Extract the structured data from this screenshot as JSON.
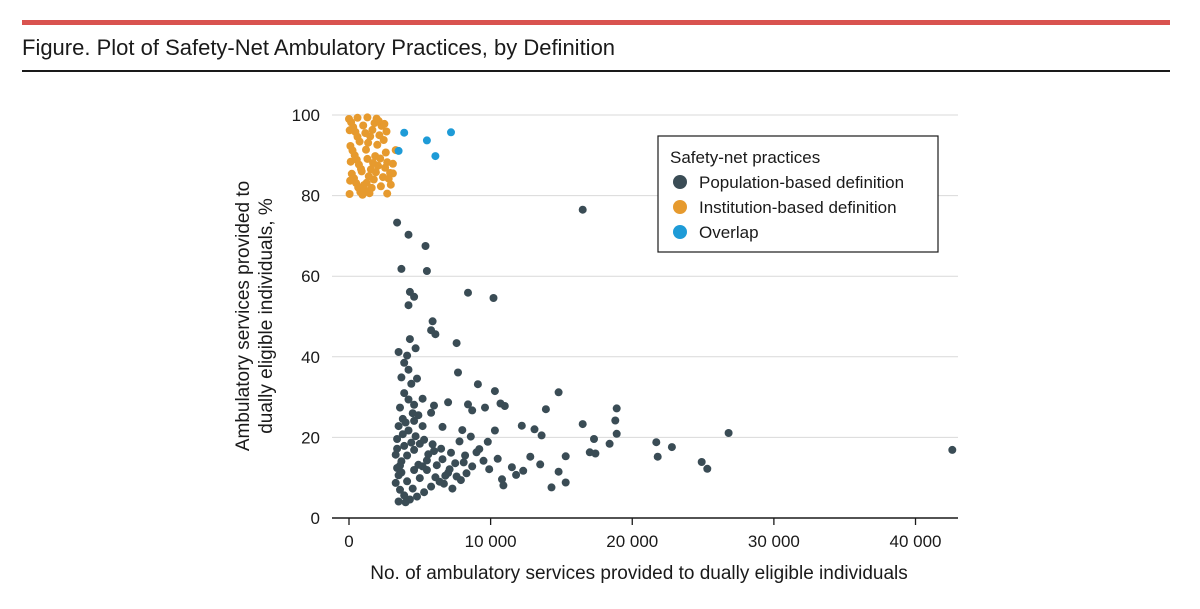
{
  "figure": {
    "title": "Figure. Plot of Safety-Net Ambulatory Practices, by Definition"
  },
  "colors": {
    "accent_rule": "#d9534f",
    "population": "#3a4c55",
    "institution": "#e69a2e",
    "overlap": "#1e9bd7",
    "gridline": "#d9d9d9"
  },
  "chart_data": {
    "type": "scatter",
    "xlabel": "No. of ambulatory services provided to dually eligible individuals",
    "ylabel_line1": "Ambulatory services provided to",
    "ylabel_line2": "dually eligible individuals, %",
    "xlim": [
      -1200,
      43000
    ],
    "ylim": [
      0,
      100
    ],
    "x_ticks": [
      0,
      10000,
      20000,
      30000,
      40000
    ],
    "x_tick_labels": [
      "0",
      "10 000",
      "20 000",
      "30 000",
      "40 000"
    ],
    "y_ticks": [
      0,
      20,
      40,
      60,
      80,
      100
    ],
    "y_tick_labels": [
      "0",
      "20",
      "40",
      "60",
      "80",
      "100"
    ],
    "grid": "horizontal",
    "legend": {
      "title": "Safety-net practices",
      "position": "top-right"
    },
    "series": [
      {
        "name": "Population-based definition",
        "color": "#3a4c55",
        "points": [
          [
            16500,
            76.5
          ],
          [
            3400,
            73.3
          ],
          [
            4200,
            70.3
          ],
          [
            5400,
            67.5
          ],
          [
            3700,
            61.8
          ],
          [
            5500,
            61.3
          ],
          [
            4300,
            56.1
          ],
          [
            4600,
            54.9
          ],
          [
            4200,
            52.8
          ],
          [
            8400,
            55.9
          ],
          [
            10200,
            54.6
          ],
          [
            5900,
            48.8
          ],
          [
            6100,
            45.6
          ],
          [
            5800,
            46.6
          ],
          [
            4300,
            44.4
          ],
          [
            4700,
            42.1
          ],
          [
            7600,
            43.4
          ],
          [
            3500,
            41.2
          ],
          [
            4100,
            40.3
          ],
          [
            3900,
            38.5
          ],
          [
            7700,
            36.1
          ],
          [
            4200,
            36.8
          ],
          [
            4800,
            34.6
          ],
          [
            3700,
            34.9
          ],
          [
            4400,
            33.3
          ],
          [
            9100,
            33.2
          ],
          [
            10300,
            31.5
          ],
          [
            14800,
            31.2
          ],
          [
            3900,
            31.0
          ],
          [
            4200,
            29.4
          ],
          [
            4600,
            28.1
          ],
          [
            5200,
            29.6
          ],
          [
            6000,
            27.9
          ],
          [
            7000,
            28.7
          ],
          [
            8400,
            28.2
          ],
          [
            9600,
            27.4
          ],
          [
            11000,
            27.8
          ],
          [
            13900,
            27.0
          ],
          [
            10700,
            28.4
          ],
          [
            8700,
            26.7
          ],
          [
            3600,
            27.4
          ],
          [
            4900,
            25.5
          ],
          [
            5800,
            26.1
          ],
          [
            3800,
            24.6
          ],
          [
            4600,
            24.1
          ],
          [
            5200,
            22.8
          ],
          [
            6600,
            22.6
          ],
          [
            8000,
            21.8
          ],
          [
            16500,
            23.3
          ],
          [
            18900,
            27.2
          ],
          [
            18800,
            24.2
          ],
          [
            12200,
            22.9
          ],
          [
            10300,
            21.7
          ],
          [
            13100,
            22.0
          ],
          [
            13600,
            20.5
          ],
          [
            17300,
            19.6
          ],
          [
            18900,
            20.9
          ],
          [
            21700,
            18.8
          ],
          [
            22800,
            17.6
          ],
          [
            26800,
            21.1
          ],
          [
            17000,
            16.3
          ],
          [
            18400,
            18.4
          ],
          [
            17400,
            16.0
          ],
          [
            21800,
            15.2
          ],
          [
            15300,
            15.3
          ],
          [
            14800,
            11.5
          ],
          [
            15300,
            8.8
          ],
          [
            14300,
            7.6
          ],
          [
            11800,
            10.7
          ],
          [
            10500,
            14.7
          ],
          [
            9500,
            14.2
          ],
          [
            11500,
            12.6
          ],
          [
            12300,
            11.7
          ],
          [
            10800,
            9.6
          ],
          [
            10900,
            8.1
          ],
          [
            24900,
            13.9
          ],
          [
            25300,
            12.2
          ],
          [
            42600,
            16.9
          ],
          [
            12800,
            15.2
          ],
          [
            13500,
            13.3
          ],
          [
            9200,
            17.1
          ],
          [
            8700,
            12.8
          ],
          [
            8300,
            11.1
          ],
          [
            7900,
            9.4
          ],
          [
            7300,
            7.3
          ],
          [
            6800,
            10.5
          ],
          [
            6200,
            13.1
          ],
          [
            5600,
            15.8
          ],
          [
            5000,
            18.4
          ],
          [
            4600,
            16.9
          ],
          [
            4100,
            15.5
          ],
          [
            3700,
            14.1
          ],
          [
            3400,
            12.4
          ],
          [
            3500,
            10.6
          ],
          [
            3300,
            8.7
          ],
          [
            3600,
            7.0
          ],
          [
            3900,
            5.6
          ],
          [
            4300,
            4.6
          ],
          [
            4800,
            5.3
          ],
          [
            5300,
            6.4
          ],
          [
            5800,
            7.8
          ],
          [
            6400,
            9.0
          ],
          [
            7000,
            11.2
          ],
          [
            7500,
            13.6
          ],
          [
            8200,
            15.5
          ],
          [
            9000,
            16.3
          ],
          [
            9800,
            18.9
          ],
          [
            9900,
            12.1
          ],
          [
            3400,
            19.6
          ],
          [
            3800,
            20.8
          ],
          [
            4200,
            21.7
          ],
          [
            4700,
            20.3
          ],
          [
            5300,
            19.4
          ],
          [
            5900,
            18.3
          ],
          [
            6500,
            17.2
          ],
          [
            7200,
            16.2
          ],
          [
            7800,
            19.0
          ],
          [
            8600,
            20.2
          ],
          [
            3500,
            22.8
          ],
          [
            4000,
            23.7
          ],
          [
            4500,
            26.0
          ],
          [
            3400,
            17.2
          ],
          [
            3900,
            17.9
          ],
          [
            4400,
            18.7
          ],
          [
            4900,
            13.2
          ],
          [
            5500,
            11.9
          ],
          [
            6100,
            10.1
          ],
          [
            6700,
            8.5
          ],
          [
            3300,
            15.7
          ],
          [
            3700,
            11.3
          ],
          [
            4100,
            9.1
          ],
          [
            4500,
            7.3
          ],
          [
            5000,
            9.9
          ],
          [
            5500,
            14.3
          ],
          [
            6000,
            16.6
          ],
          [
            6600,
            14.6
          ],
          [
            7100,
            12.1
          ],
          [
            7600,
            10.3
          ],
          [
            8100,
            13.8
          ],
          [
            3500,
            4.1
          ],
          [
            4000,
            3.9
          ],
          [
            4600,
            11.9
          ],
          [
            5200,
            12.8
          ],
          [
            3600,
            13.0
          ]
        ]
      },
      {
        "name": "Institution-based definition",
        "color": "#e69a2e",
        "points": [
          [
            0,
            99.0
          ],
          [
            150,
            98.2
          ],
          [
            300,
            97.0
          ],
          [
            450,
            95.8
          ],
          [
            600,
            94.6
          ],
          [
            750,
            93.4
          ],
          [
            100,
            92.3
          ],
          [
            250,
            91.2
          ],
          [
            400,
            90.0
          ],
          [
            550,
            88.9
          ],
          [
            700,
            87.7
          ],
          [
            850,
            86.6
          ],
          [
            200,
            85.4
          ],
          [
            350,
            84.3
          ],
          [
            500,
            83.1
          ],
          [
            650,
            82.0
          ],
          [
            800,
            80.9
          ],
          [
            950,
            80.2
          ],
          [
            1100,
            81.5
          ],
          [
            1250,
            83.2
          ],
          [
            1400,
            84.8
          ],
          [
            1550,
            86.5
          ],
          [
            1700,
            88.1
          ],
          [
            1850,
            89.8
          ],
          [
            1200,
            91.4
          ],
          [
            1350,
            93.1
          ],
          [
            1500,
            94.7
          ],
          [
            1650,
            96.3
          ],
          [
            1800,
            98.0
          ],
          [
            1950,
            99.1
          ],
          [
            1000,
            97.4
          ],
          [
            1150,
            95.5
          ],
          [
            1300,
            89.1
          ],
          [
            900,
            86.0
          ],
          [
            1050,
            82.6
          ],
          [
            1450,
            80.6
          ],
          [
            1600,
            81.9
          ],
          [
            1750,
            84.0
          ],
          [
            1900,
            85.8
          ],
          [
            2050,
            87.4
          ],
          [
            2200,
            89.2
          ],
          [
            2000,
            92.6
          ],
          [
            2150,
            95.0
          ],
          [
            2300,
            97.3
          ],
          [
            2100,
            98.5
          ],
          [
            2250,
            82.3
          ],
          [
            2400,
            84.6
          ],
          [
            2550,
            86.9
          ],
          [
            2700,
            88.3
          ],
          [
            2600,
            90.7
          ],
          [
            2450,
            93.8
          ],
          [
            2800,
            84.2
          ],
          [
            2950,
            82.7
          ],
          [
            3100,
            85.5
          ],
          [
            3300,
            91.3
          ],
          [
            3100,
            87.9
          ],
          [
            2900,
            85.6
          ],
          [
            2700,
            80.5
          ],
          [
            600,
            99.3
          ],
          [
            1300,
            99.4
          ],
          [
            2500,
            97.8
          ],
          [
            2650,
            95.9
          ],
          [
            50,
            96.2
          ],
          [
            120,
            88.4
          ],
          [
            80,
            83.7
          ],
          [
            40,
            80.4
          ]
        ]
      },
      {
        "name": "Overlap",
        "color": "#1e9bd7",
        "points": [
          [
            3900,
            95.6
          ],
          [
            5500,
            93.7
          ],
          [
            7200,
            95.7
          ],
          [
            6100,
            89.8
          ],
          [
            3500,
            91.1
          ]
        ]
      }
    ]
  }
}
